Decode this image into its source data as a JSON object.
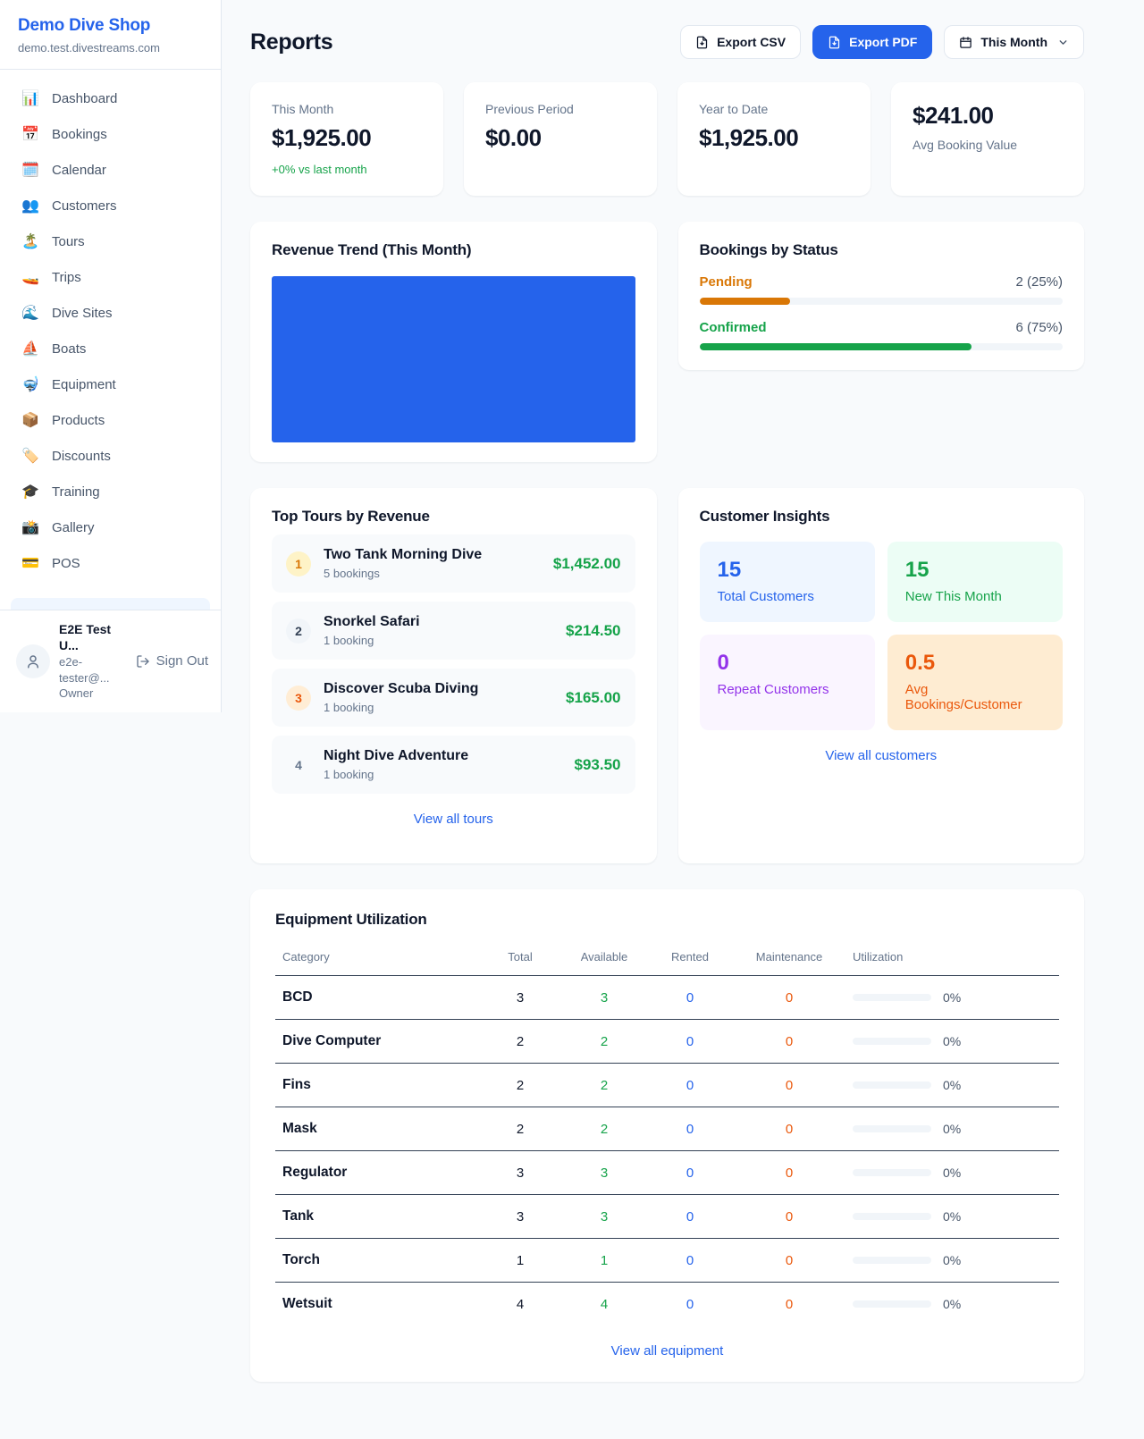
{
  "colors": {
    "accent_blue": "#2563eb",
    "success_green": "#16a34a",
    "pending_orange": "#d97706",
    "maintenance_orange": "#ea580c",
    "repeat_purple": "#9333ea",
    "page_background": "#f8fafc"
  },
  "sidebar": {
    "shop_name": "Demo Dive Shop",
    "shop_domain": "demo.test.divestreams.com",
    "items": [
      {
        "icon": "📊",
        "label": "Dashboard"
      },
      {
        "icon": "📅",
        "label": "Bookings"
      },
      {
        "icon": "🗓️",
        "label": "Calendar"
      },
      {
        "icon": "👥",
        "label": "Customers"
      },
      {
        "icon": "🏝️",
        "label": "Tours"
      },
      {
        "icon": "🚤",
        "label": "Trips"
      },
      {
        "icon": "🌊",
        "label": "Dive Sites"
      },
      {
        "icon": "⛵",
        "label": "Boats"
      },
      {
        "icon": "🤿",
        "label": "Equipment"
      },
      {
        "icon": "📦",
        "label": "Products"
      },
      {
        "icon": "🏷️",
        "label": "Discounts"
      },
      {
        "icon": "🎓",
        "label": "Training"
      },
      {
        "icon": "📸",
        "label": "Gallery"
      },
      {
        "icon": "💳",
        "label": "POS"
      }
    ],
    "user": {
      "name": "E2E Test U...",
      "email": "e2e-tester@...",
      "role": "Owner",
      "sign_out_label": "Sign Out"
    }
  },
  "header": {
    "title": "Reports",
    "export_csv_label": "Export CSV",
    "export_pdf_label": "Export PDF",
    "period_label": "This Month"
  },
  "stats": [
    {
      "label": "This Month",
      "value": "$1,925.00",
      "delta": "+0% vs last month"
    },
    {
      "label": "Previous Period",
      "value": "$0.00"
    },
    {
      "label": "Year to Date",
      "value": "$1,925.00"
    },
    {
      "label": "Avg Booking Value",
      "value": "$241.00"
    }
  ],
  "revenue_trend": {
    "title": "Revenue Trend (This Month)"
  },
  "bookings_by_status": {
    "title": "Bookings by Status",
    "rows": [
      {
        "label": "Pending",
        "count_text": "2 (25%)",
        "percent": 25,
        "color": "#d97706"
      },
      {
        "label": "Confirmed",
        "count_text": "6 (75%)",
        "percent": 75,
        "color": "#16a34a"
      }
    ]
  },
  "top_tours": {
    "title": "Top Tours by Revenue",
    "view_all_label": "View all tours",
    "items": [
      {
        "rank": "1",
        "name": "Two Tank Morning Dive",
        "bookings": "5 bookings",
        "revenue": "$1,452.00"
      },
      {
        "rank": "2",
        "name": "Snorkel Safari",
        "bookings": "1 booking",
        "revenue": "$214.50"
      },
      {
        "rank": "3",
        "name": "Discover Scuba Diving",
        "bookings": "1 booking",
        "revenue": "$165.00"
      },
      {
        "rank": "4",
        "name": "Night Dive Adventure",
        "bookings": "1 booking",
        "revenue": "$93.50"
      }
    ]
  },
  "customer_insights": {
    "title": "Customer Insights",
    "view_all_label": "View all customers",
    "boxes": [
      {
        "value": "15",
        "label": "Total Customers"
      },
      {
        "value": "15",
        "label": "New This Month"
      },
      {
        "value": "0",
        "label": "Repeat Customers"
      },
      {
        "value": "0.5",
        "label": "Avg Bookings/Customer"
      }
    ]
  },
  "equipment": {
    "title": "Equipment Utilization",
    "view_all_label": "View all equipment",
    "columns": [
      "Category",
      "Total",
      "Available",
      "Rented",
      "Maintenance",
      "Utilization"
    ],
    "rows": [
      {
        "category": "BCD",
        "total": "3",
        "available": "3",
        "rented": "0",
        "maintenance": "0",
        "utilization": "0%",
        "percent": 0
      },
      {
        "category": "Dive Computer",
        "total": "2",
        "available": "2",
        "rented": "0",
        "maintenance": "0",
        "utilization": "0%",
        "percent": 0
      },
      {
        "category": "Fins",
        "total": "2",
        "available": "2",
        "rented": "0",
        "maintenance": "0",
        "utilization": "0%",
        "percent": 0
      },
      {
        "category": "Mask",
        "total": "2",
        "available": "2",
        "rented": "0",
        "maintenance": "0",
        "utilization": "0%",
        "percent": 0
      },
      {
        "category": "Regulator",
        "total": "3",
        "available": "3",
        "rented": "0",
        "maintenance": "0",
        "utilization": "0%",
        "percent": 0
      },
      {
        "category": "Tank",
        "total": "3",
        "available": "3",
        "rented": "0",
        "maintenance": "0",
        "utilization": "0%",
        "percent": 0
      },
      {
        "category": "Torch",
        "total": "1",
        "available": "1",
        "rented": "0",
        "maintenance": "0",
        "utilization": "0%",
        "percent": 0
      },
      {
        "category": "Wetsuit",
        "total": "4",
        "available": "4",
        "rented": "0",
        "maintenance": "0",
        "utilization": "0%",
        "percent": 0
      }
    ]
  },
  "chart_data": [
    {
      "type": "bar",
      "title": "Revenue Trend (This Month)",
      "categories": [
        "This Month"
      ],
      "values": [
        1925.0
      ],
      "xlabel": "",
      "ylabel": "",
      "note": "single full-width solid bar, no axes or gridlines",
      "bar_color": "#2563eb"
    },
    {
      "type": "bar",
      "title": "Bookings by Status",
      "categories": [
        "Pending",
        "Confirmed"
      ],
      "values": [
        2,
        6
      ],
      "percent_values": [
        25,
        75
      ],
      "annotations": [
        "2 (25%)",
        "6 (75%)"
      ],
      "colors": [
        "#d97706",
        "#16a34a"
      ],
      "note": "horizontal progress bars"
    }
  ]
}
